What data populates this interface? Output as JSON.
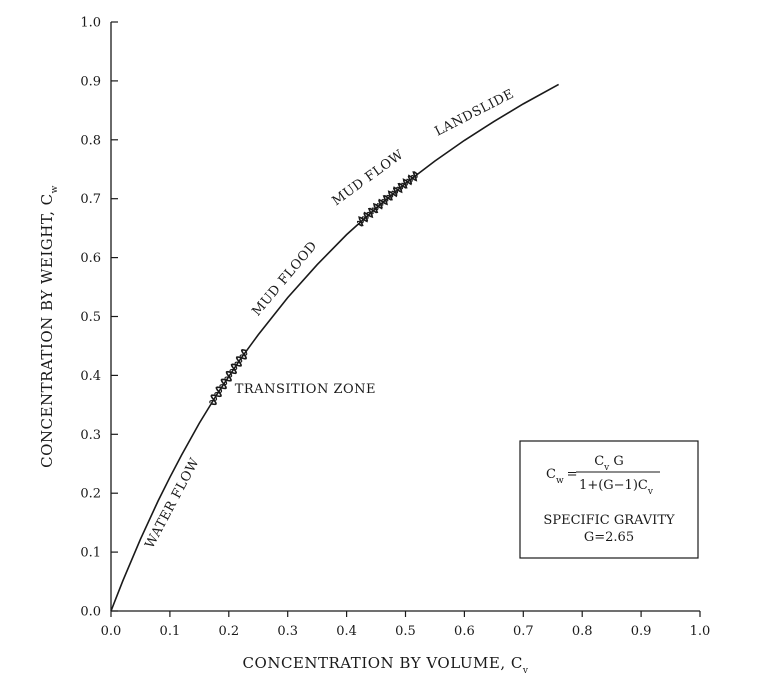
{
  "chart_data": {
    "type": "line",
    "title": "",
    "xlabel": "CONCENTRATION BY VOLUME, C",
    "xlabel_subscript": "v",
    "ylabel": "CONCENTRATION BY WEIGHT, C",
    "ylabel_subscript": "w",
    "xlim": [
      0.0,
      1.0
    ],
    "ylim": [
      0.0,
      1.0
    ],
    "x_ticks": [
      "0.0",
      "0.1",
      "0.2",
      "0.3",
      "0.4",
      "0.5",
      "0.6",
      "0.7",
      "0.8",
      "0.9",
      "1.0"
    ],
    "y_ticks": [
      "0.0",
      "0.1",
      "0.2",
      "0.3",
      "0.4",
      "0.5",
      "0.6",
      "0.7",
      "0.8",
      "0.9",
      "1.0"
    ],
    "grid": false,
    "specific_gravity": 2.65,
    "series": [
      {
        "x": [
          0.0,
          0.02,
          0.05,
          0.08,
          0.1,
          0.12,
          0.15,
          0.18,
          0.2,
          0.22,
          0.25,
          0.3,
          0.35,
          0.4,
          0.45,
          0.5,
          0.55,
          0.6,
          0.65,
          0.7,
          0.76
        ],
        "y": [
          0.0,
          0.051,
          0.122,
          0.187,
          0.227,
          0.265,
          0.319,
          0.368,
          0.398,
          0.428,
          0.469,
          0.532,
          0.588,
          0.639,
          0.684,
          0.726,
          0.764,
          0.799,
          0.831,
          0.861,
          0.894
        ]
      }
    ],
    "squiggle_zones": [
      {
        "x_start": 0.17,
        "x_end": 0.23
      },
      {
        "x_start": 0.42,
        "x_end": 0.52
      }
    ],
    "region_labels": [
      {
        "text": "WATER FLOW",
        "x": 0.11,
        "y": 0.18,
        "angle": -62
      },
      {
        "text": "TRANSITION ZONE",
        "x": 0.33,
        "y": 0.37,
        "angle": 0
      },
      {
        "text": "MUD FLOOD",
        "x": 0.3,
        "y": 0.56,
        "angle": -50
      },
      {
        "text": "MUD FLOW",
        "x": 0.44,
        "y": 0.73,
        "angle": -36
      },
      {
        "text": "LANDSLIDE",
        "x": 0.62,
        "y": 0.84,
        "angle": -27
      }
    ],
    "annotation_box": {
      "formula_lhs": "C",
      "formula_lhs_sub": "w",
      "formula_eq": "=",
      "formula_numerator": "C",
      "formula_numerator_sub": "v",
      "formula_numerator_tail": " G",
      "formula_denominator": "1+(G−1)C",
      "formula_denominator_sub": "v",
      "label": "SPECIFIC GRAVITY",
      "value": "G=2.65"
    }
  }
}
